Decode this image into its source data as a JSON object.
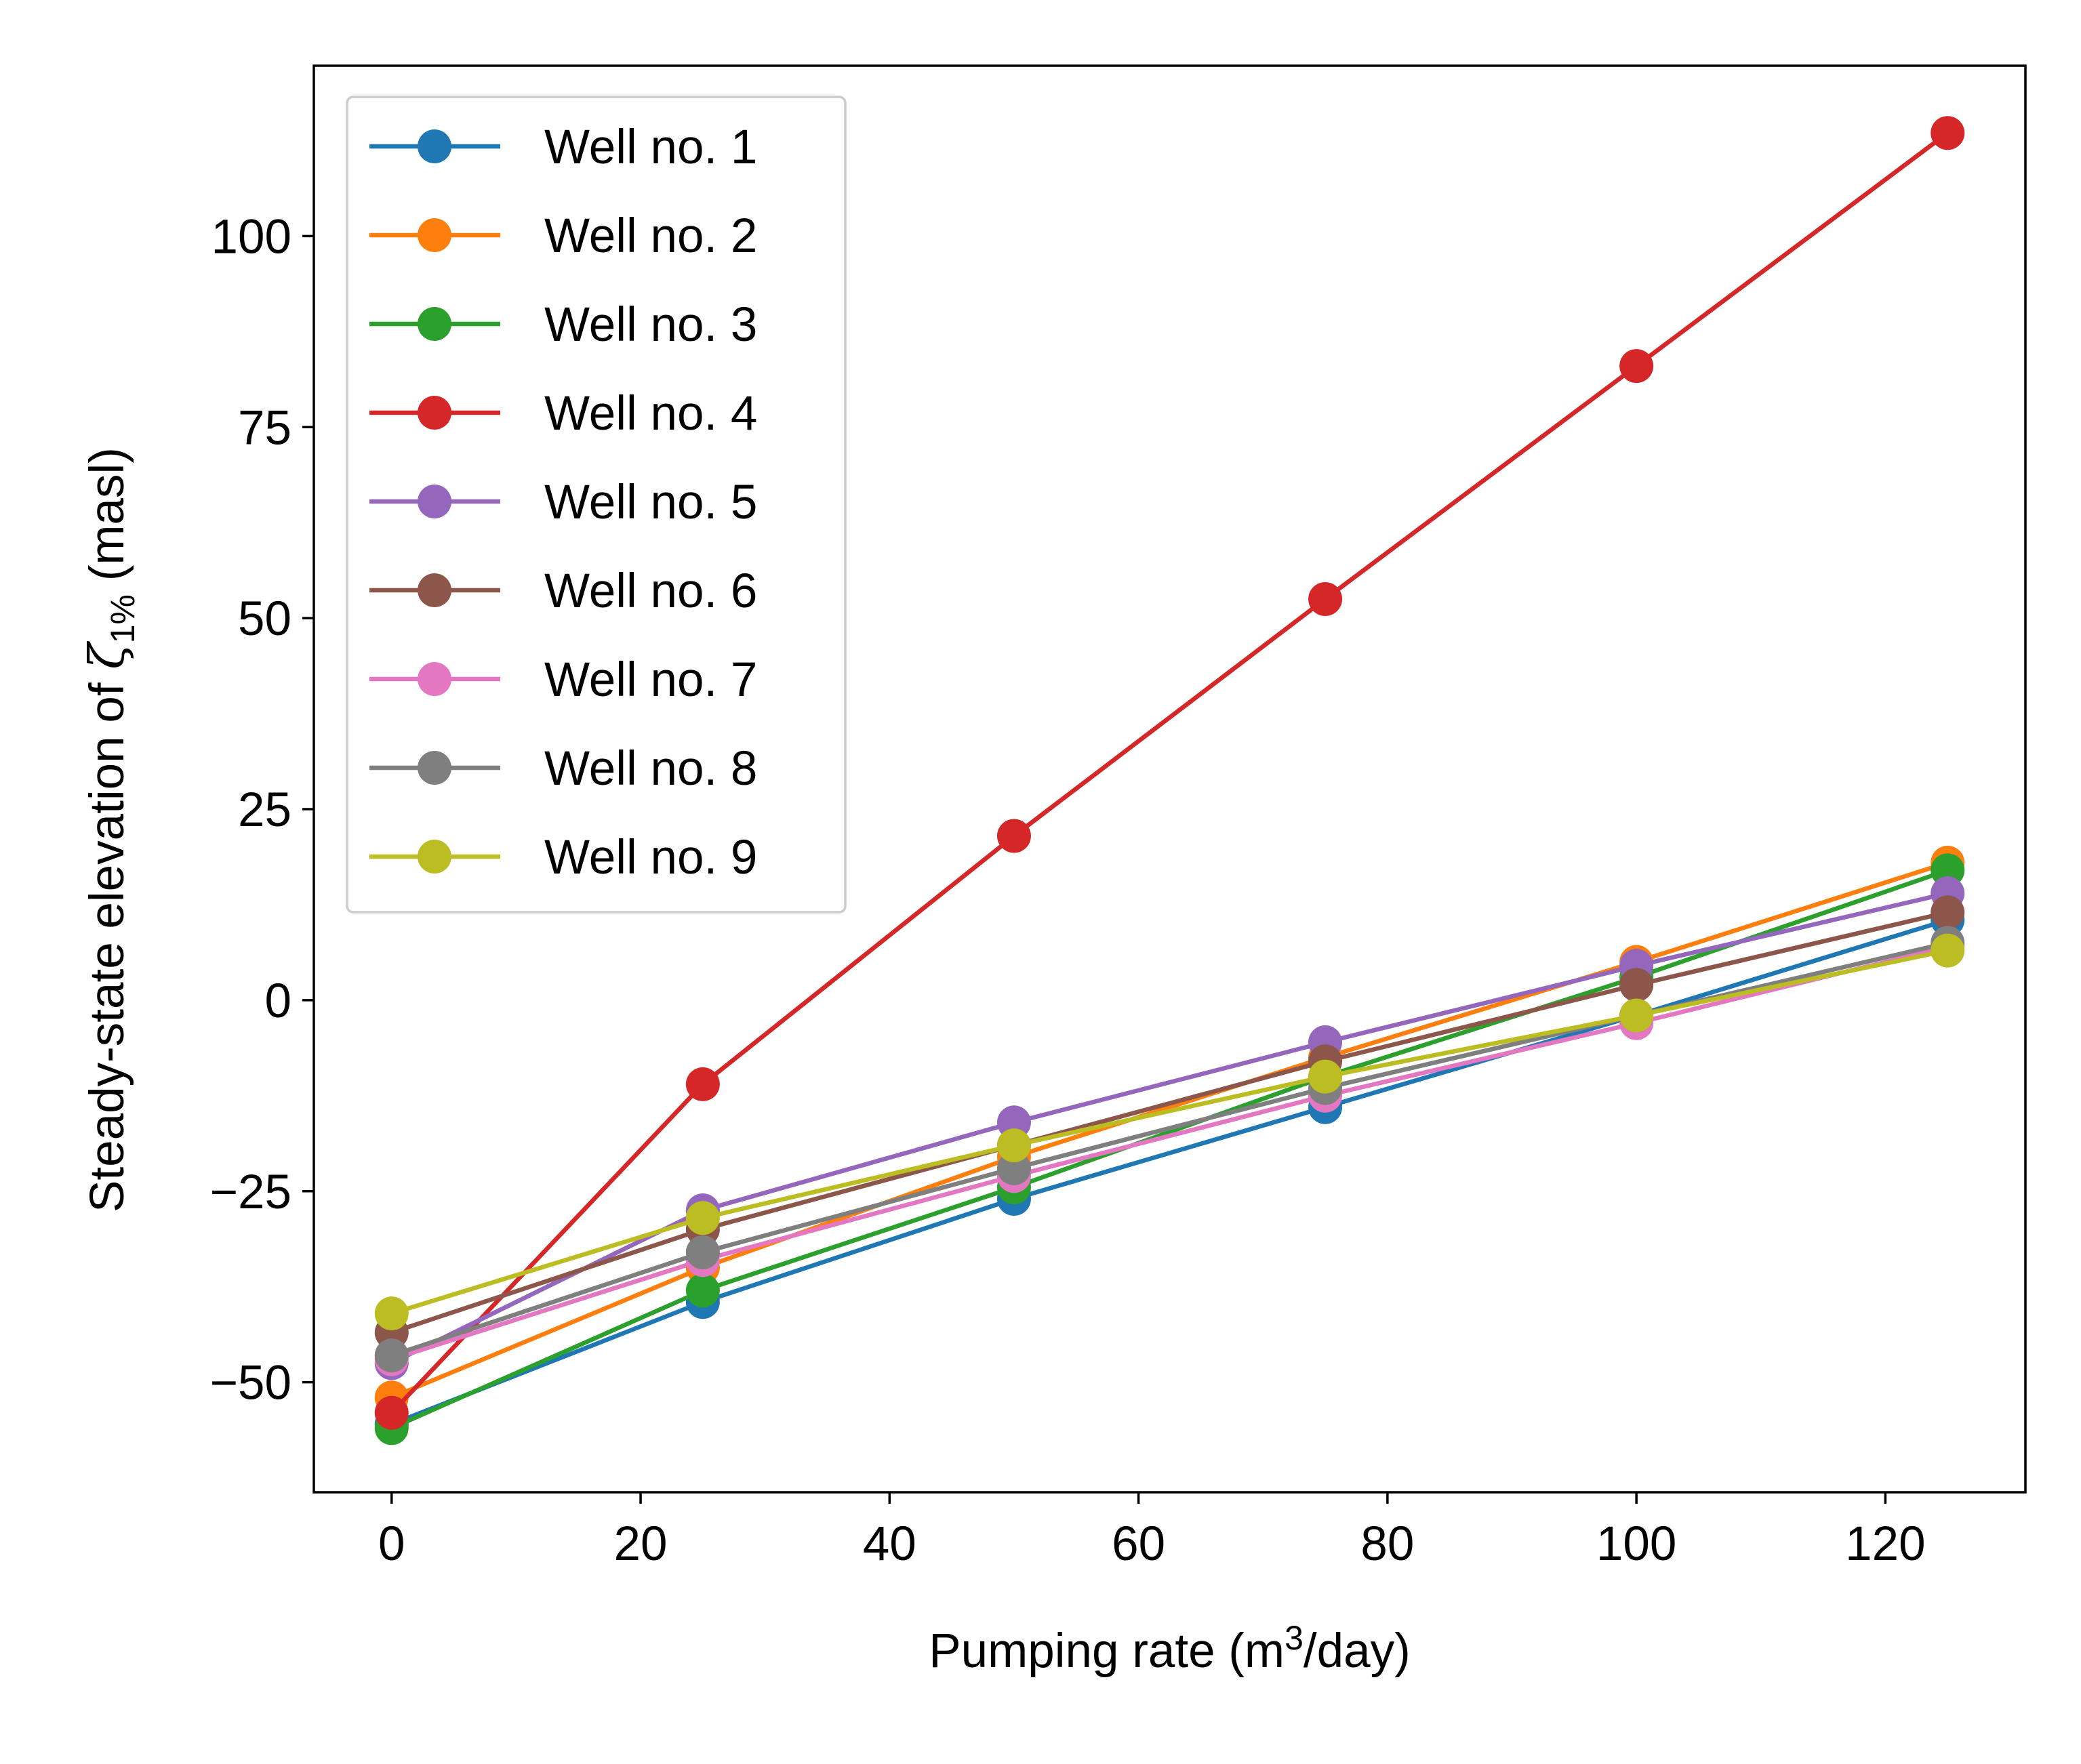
{
  "chart_data": {
    "type": "line",
    "xlabel": {
      "before": "Pumping rate (m",
      "sup": "3",
      "after": "/day)"
    },
    "ylabel": {
      "before": "Steady-state elevation of ",
      "symbol": "ζ",
      "sub": "1%",
      "after": " (masl)"
    },
    "x": [
      0,
      25,
      50,
      75,
      100,
      125
    ],
    "xlim": [
      -6.25,
      131.25
    ],
    "ylim": [
      -64.4,
      122.3
    ],
    "xticks": [
      0,
      20,
      40,
      60,
      80,
      100,
      120
    ],
    "xtick_labels": [
      "0",
      "20",
      "40",
      "60",
      "80",
      "100",
      "120"
    ],
    "yticks": [
      -50,
      -25,
      0,
      25,
      50,
      75,
      100
    ],
    "ytick_labels": [
      "−50",
      "−25",
      "0",
      "25",
      "50",
      "75",
      "100"
    ],
    "grid": false,
    "legend_position": "upper-left",
    "series": [
      {
        "name": "Well no. 1",
        "color": "#1f77b4",
        "values": [
          -55.5,
          -39.5,
          -26,
          -14,
          -2,
          10.5
        ]
      },
      {
        "name": "Well no. 2",
        "color": "#ff7f0e",
        "values": [
          -52,
          -35,
          -20.5,
          -7.5,
          5,
          18
        ]
      },
      {
        "name": "Well no. 3",
        "color": "#2ca02c",
        "values": [
          -56,
          -38,
          -24.5,
          -10,
          3,
          17
        ]
      },
      {
        "name": "Well no. 4",
        "color": "#d62728",
        "values": [
          -54,
          -11,
          21.5,
          52.5,
          83,
          113.5
        ]
      },
      {
        "name": "Well no. 5",
        "color": "#9467bd",
        "values": [
          -47.5,
          -27.5,
          -16,
          -5.5,
          4.5,
          14
        ]
      },
      {
        "name": "Well no. 6",
        "color": "#8c564b",
        "values": [
          -43.5,
          -30,
          -19,
          -8,
          2,
          11.5
        ]
      },
      {
        "name": "Well no. 7",
        "color": "#e377c2",
        "values": [
          -47,
          -34,
          -23,
          -12.5,
          -3,
          7
        ]
      },
      {
        "name": "Well no. 8",
        "color": "#7f7f7f",
        "values": [
          -46.5,
          -33,
          -22,
          -11.5,
          -2,
          7.5
        ]
      },
      {
        "name": "Well no. 9",
        "color": "#bcbd22",
        "values": [
          -41,
          -28.5,
          -19,
          -10,
          -2,
          6.5
        ]
      }
    ]
  }
}
